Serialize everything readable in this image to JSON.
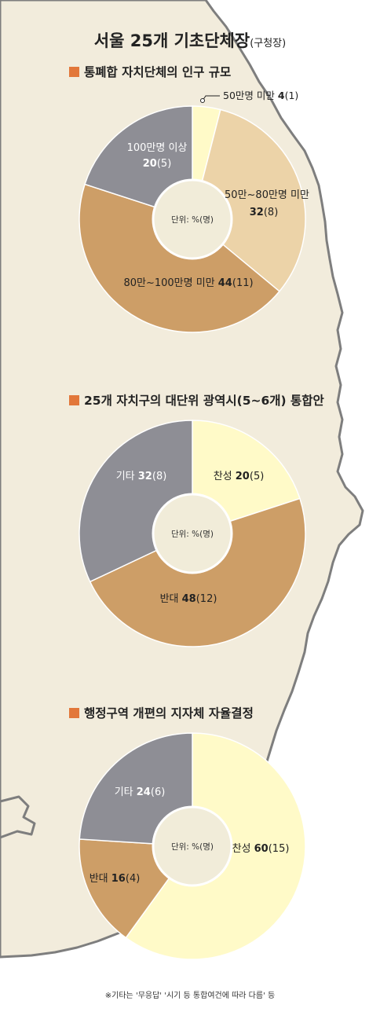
{
  "title": "서울 25개 기초단체장",
  "title_sub": "(구청장)",
  "unit_label": "단위: %(명)",
  "footnote": "※기타는 '무응답' '시기 등 통합여건에 따라 다름' 등",
  "colors": {
    "accent_square": "#e2773a",
    "map_fill": "#f2ecdc",
    "map_edge": "#7e7e7e",
    "light_yellow": "#fffac8",
    "light_tan": "#ecd3a8",
    "tan": "#cd9e67",
    "gray": "#8e8e95",
    "center_fill": "#f1ecd9"
  },
  "chart_data": [
    {
      "type": "pie",
      "title": "통폐합 자치단체의 인구 규모",
      "unit": "%(명)",
      "slices": [
        {
          "label": "50만명 미만",
          "value": 4,
          "count": 1,
          "color": "#fffac8"
        },
        {
          "label": "50만~80만명 미만",
          "value": 32,
          "count": 8,
          "color": "#ecd3a8"
        },
        {
          "label": "80만~100만명 미만",
          "value": 44,
          "count": 11,
          "color": "#cd9e67"
        },
        {
          "label": "100만명 이상",
          "value": 20,
          "count": 5,
          "color": "#8e8e95"
        }
      ]
    },
    {
      "type": "pie",
      "title": "25개 자치구의 대단위 광역시(5~6개) 통합안",
      "unit": "%(명)",
      "slices": [
        {
          "label": "찬성",
          "value": 20,
          "count": 5,
          "color": "#fffac8"
        },
        {
          "label": "반대",
          "value": 48,
          "count": 12,
          "color": "#cd9e67"
        },
        {
          "label": "기타",
          "value": 32,
          "count": 8,
          "color": "#8e8e95"
        }
      ]
    },
    {
      "type": "pie",
      "title": "행정구역 개편의 지자체 자율결정",
      "unit": "%(명)",
      "slices": [
        {
          "label": "찬성",
          "value": 60,
          "count": 15,
          "color": "#fffac8"
        },
        {
          "label": "반대",
          "value": 16,
          "count": 4,
          "color": "#cd9e67"
        },
        {
          "label": "기타",
          "value": 24,
          "count": 6,
          "color": "#8e8e95"
        }
      ]
    }
  ]
}
